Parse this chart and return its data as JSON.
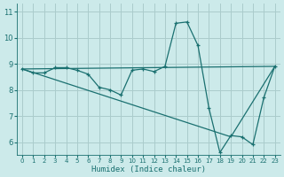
{
  "xlabel": "Humidex (Indice chaleur)",
  "bg_color": "#cceaea",
  "grid_color": "#aacccc",
  "line_color": "#1a7070",
  "xlim": [
    -0.5,
    23.5
  ],
  "ylim": [
    5.5,
    11.3
  ],
  "yticks": [
    6,
    7,
    8,
    9,
    10,
    11
  ],
  "xticks": [
    0,
    1,
    2,
    3,
    4,
    5,
    6,
    7,
    8,
    9,
    10,
    11,
    12,
    13,
    14,
    15,
    16,
    17,
    18,
    19,
    20,
    21,
    22,
    23
  ],
  "line1_x": [
    0,
    1,
    2,
    3,
    4,
    5,
    6,
    7,
    8,
    9,
    10,
    11,
    12,
    13,
    14,
    15,
    16,
    17,
    18,
    19,
    20,
    21,
    22,
    23
  ],
  "line1_y": [
    8.8,
    8.65,
    8.65,
    8.85,
    8.85,
    8.75,
    8.6,
    8.1,
    8.0,
    7.8,
    8.75,
    8.8,
    8.7,
    8.9,
    10.55,
    10.6,
    9.7,
    7.3,
    5.6,
    6.25,
    6.2,
    5.9,
    7.7,
    8.9
  ],
  "line2_x": [
    0,
    23
  ],
  "line2_y": [
    8.8,
    8.9
  ],
  "line3_x": [
    0,
    19,
    23
  ],
  "line3_y": [
    8.8,
    6.2,
    8.9
  ]
}
